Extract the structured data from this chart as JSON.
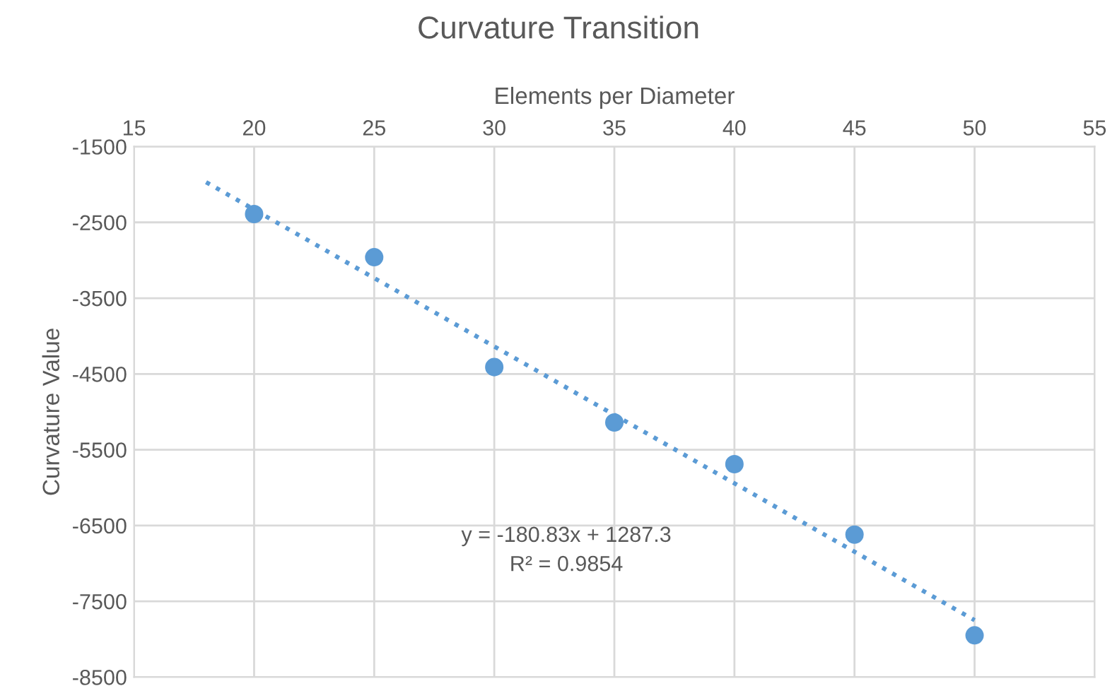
{
  "chart_data": {
    "type": "scatter",
    "title": "Curvature Transition",
    "xlabel": "Elements per Diameter",
    "ylabel": "Curvature Value",
    "xlim": [
      15,
      55
    ],
    "xticks": [
      15,
      20,
      25,
      30,
      35,
      40,
      45,
      50,
      55
    ],
    "ylim": [
      -8500,
      -1500
    ],
    "yticks": [
      -8500,
      -7500,
      -6500,
      -5500,
      -4500,
      -3500,
      -2500,
      -1500
    ],
    "grid": true,
    "marker": "circle",
    "series": [
      {
        "color": "#5b9bd5",
        "x": [
          20,
          25,
          30,
          35,
          40,
          45,
          50
        ],
        "values": [
          -2390,
          -2960,
          -4410,
          -5140,
          -5690,
          -6620,
          -7950
        ]
      },
      {
        "type": "line",
        "color": "#5b9bd5",
        "line_style": "dotted",
        "marker": "none",
        "x": [
          18,
          50
        ],
        "values": [
          -1970,
          -7750
        ]
      }
    ],
    "annotations": [
      "y = -180.83x + 1287.3",
      "R² = 0.9854"
    ]
  }
}
